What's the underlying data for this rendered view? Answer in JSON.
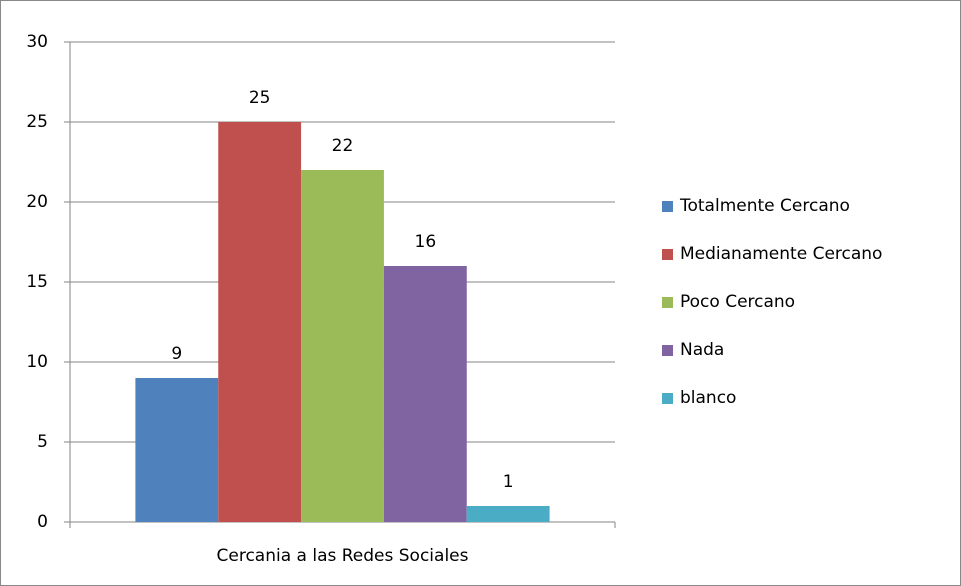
{
  "chart_data": {
    "type": "bar",
    "categories": [
      "Cercania a las Redes Sociales"
    ],
    "series": [
      {
        "name": "Totalmente Cercano",
        "color": "#4f81bd",
        "values": [
          9
        ]
      },
      {
        "name": "Medianamente Cercano",
        "color": "#c0504d",
        "values": [
          25
        ]
      },
      {
        "name": "Poco Cercano",
        "color": "#9bbb59",
        "values": [
          22
        ]
      },
      {
        "name": "Nada",
        "color": "#8064a2",
        "values": [
          16
        ]
      },
      {
        "name": "blanco",
        "color": "#4bacc6",
        "values": [
          1
        ]
      }
    ],
    "ylim": [
      0,
      30
    ],
    "yticks": [
      0,
      5,
      10,
      15,
      20,
      25,
      30
    ],
    "grid": true,
    "data_labels": true,
    "legend": "right"
  }
}
